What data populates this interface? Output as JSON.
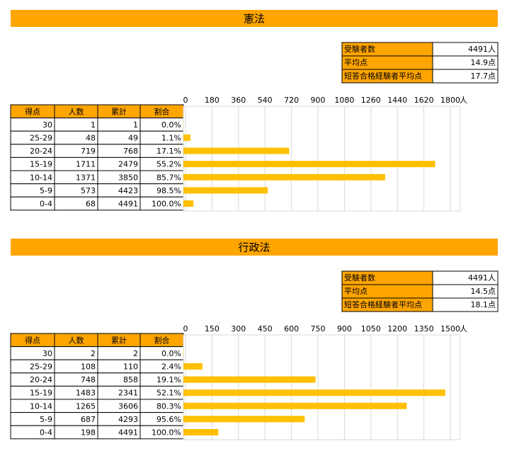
{
  "sections": [
    {
      "title": "憲法",
      "summary": [
        [
          "受験者数",
          "4491人"
        ],
        [
          "平均点",
          "14.9点"
        ],
        [
          "短答合格経験者平均点",
          "17.7点"
        ]
      ],
      "table": {
        "header": [
          "得点",
          "人数",
          "累計",
          "割合"
        ],
        "rows": [
          [
            "30",
            "1",
            "1",
            "0.0%"
          ],
          [
            "25-29",
            "48",
            "49",
            "1.1%"
          ],
          [
            "20-24",
            "719",
            "768",
            "17.1%"
          ],
          [
            "15-19",
            "1711",
            "2479",
            "55.2%"
          ],
          [
            "10-14",
            "1371",
            "3850",
            "85.7%"
          ],
          [
            "5-9",
            "573",
            "4423",
            "98.5%"
          ],
          [
            "0-4",
            "68",
            "4491",
            "100.0%"
          ]
        ]
      }
    },
    {
      "title": "行政法",
      "summary": [
        [
          "受験者数",
          "4491人"
        ],
        [
          "平均点",
          "14.5点"
        ],
        [
          "短答合格経験者平均点",
          "18.1点"
        ]
      ],
      "table": {
        "header": [
          "得点",
          "人数",
          "累計",
          "割合"
        ],
        "rows": [
          [
            "30",
            "2",
            "2",
            "0.0%"
          ],
          [
            "25-29",
            "108",
            "110",
            "2.4%"
          ],
          [
            "20-24",
            "748",
            "858",
            "19.1%"
          ],
          [
            "15-19",
            "1483",
            "2341",
            "52.1%"
          ],
          [
            "10-14",
            "1265",
            "3606",
            "80.3%"
          ],
          [
            "5-9",
            "687",
            "4293",
            "95.6%"
          ],
          [
            "0-4",
            "198",
            "4491",
            "100.0%"
          ]
        ]
      }
    }
  ],
  "chart_data": [
    {
      "type": "bar",
      "orientation": "horizontal",
      "x_unit": "人",
      "values": [
        1,
        48,
        719,
        1711,
        1371,
        573,
        68
      ],
      "color": "#ffc000",
      "xlim": [
        0,
        1800
      ],
      "xticks": [
        0,
        180,
        360,
        540,
        720,
        900,
        1080,
        1260,
        1440,
        1620,
        1800
      ],
      "grid": true
    },
    {
      "type": "bar",
      "orientation": "horizontal",
      "x_unit": "人",
      "values": [
        2,
        108,
        748,
        1483,
        1265,
        687,
        198
      ],
      "color": "#ffc000",
      "xlim": [
        0,
        1500
      ],
      "xticks": [
        0,
        150,
        300,
        450,
        600,
        750,
        900,
        1050,
        1200,
        1350,
        1500
      ],
      "grid": true
    }
  ]
}
